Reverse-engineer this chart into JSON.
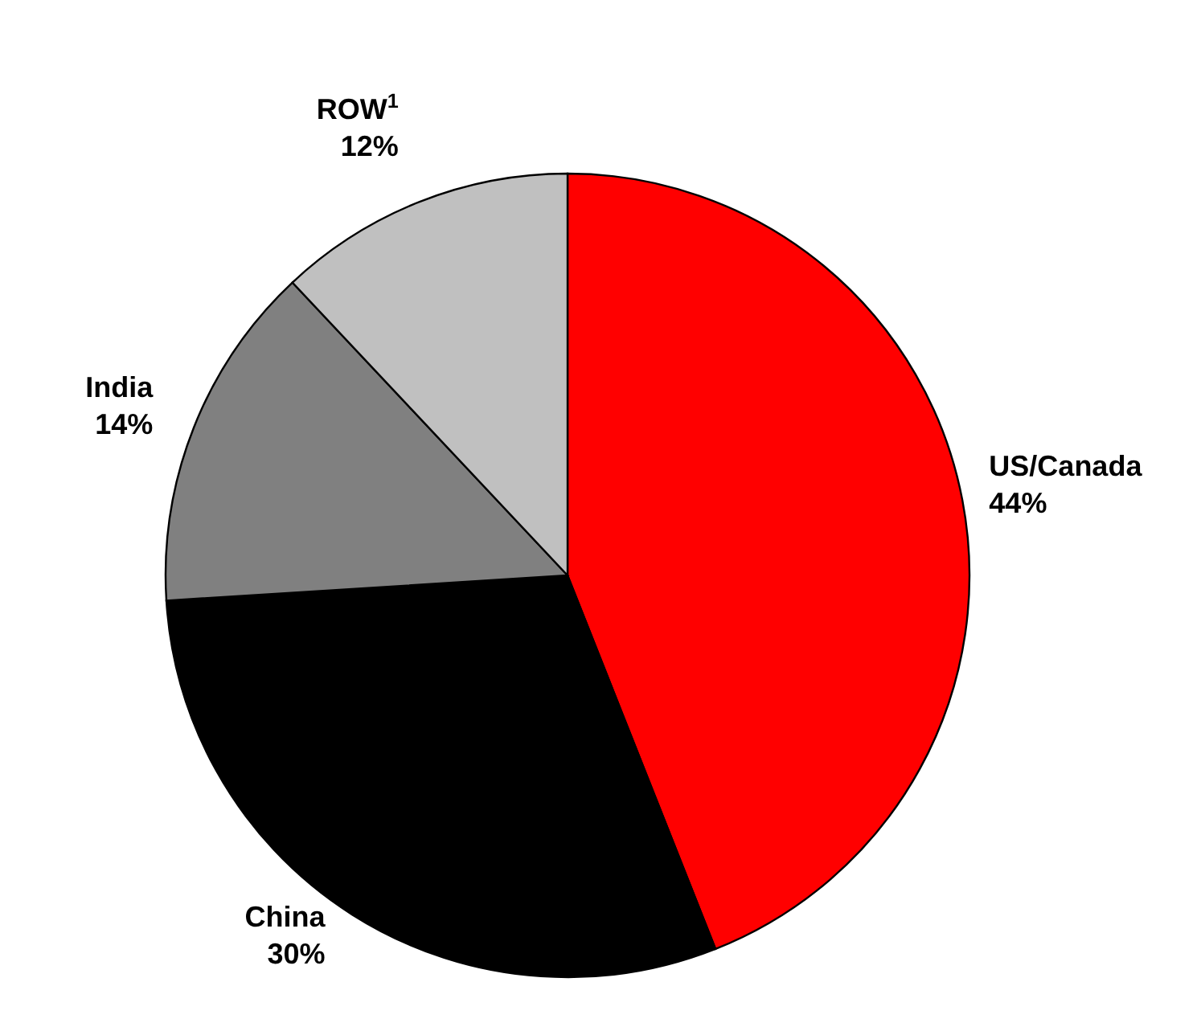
{
  "chart_data": {
    "type": "pie",
    "categories": [
      "US/Canada",
      "China",
      "India",
      "ROW$^{1}$"
    ],
    "values": [
      44,
      30,
      14,
      12
    ],
    "value_labels": [
      "44%",
      "30%",
      "14%",
      "12%"
    ],
    "colors": [
      "#ff0000",
      "#000000",
      "#808080",
      "#c0c0c0"
    ]
  }
}
